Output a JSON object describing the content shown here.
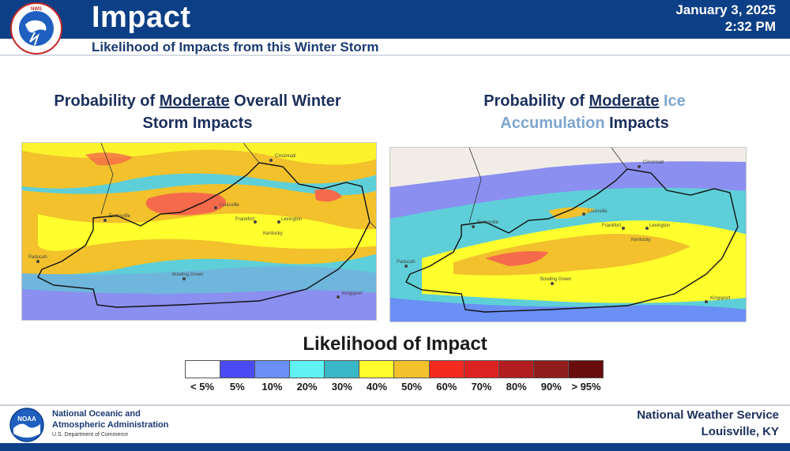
{
  "header": {
    "title": "Impact",
    "subtitle": "Likelihood of Impacts from this Winter Storm",
    "date": "January 3, 2025",
    "time": "2:32 PM",
    "colors": {
      "header_bg": "#0d3f86",
      "subtitle_text": "#1b3a72"
    }
  },
  "logos": {
    "nws": "nws-logo-icon",
    "noaa": "noaa-logo-icon"
  },
  "panels": {
    "left": {
      "title_a": "Probability of ",
      "title_b": "Moderate",
      "title_c": " Overall Winter",
      "title_d": "Storm Impacts",
      "cities": [
        "Cincinnati",
        "Evansville",
        "Louisville",
        "Frankfort",
        "Lexington",
        "Kentucky",
        "Bowling Green",
        "Paducah",
        "Kingsport"
      ]
    },
    "right": {
      "title_a": "Probability of ",
      "title_b": "Moderate",
      "title_c": " Ice",
      "title_d": "Accumulation",
      "title_e": " Impacts",
      "cities": [
        "Cincinnati",
        "Evansville",
        "Louisville",
        "Frankfort",
        "Lexington",
        "Kentucky",
        "Bowling Green",
        "Paducah",
        "Kingsport"
      ]
    }
  },
  "legend": {
    "title": "Likelihood of Impact",
    "items": [
      {
        "label": "< 5%",
        "color": "#ffffff"
      },
      {
        "label": "5%",
        "color": "#4b4bf5"
      },
      {
        "label": "10%",
        "color": "#6a8ff5"
      },
      {
        "label": "20%",
        "color": "#5ef2f4"
      },
      {
        "label": "30%",
        "color": "#3ab7c6"
      },
      {
        "label": "40%",
        "color": "#ffff2e"
      },
      {
        "label": "50%",
        "color": "#f2c12c"
      },
      {
        "label": "60%",
        "color": "#f42a1e"
      },
      {
        "label": "70%",
        "color": "#dd2321"
      },
      {
        "label": "80%",
        "color": "#b21d1f"
      },
      {
        "label": "90%",
        "color": "#8f1d1d"
      },
      {
        "label": "> 95%",
        "color": "#6a0d0d"
      }
    ]
  },
  "footer": {
    "noaa_line1": "National Oceanic and",
    "noaa_line2": "Atmospheric Administration",
    "noaa_dept": "U.S. Department of Commerce",
    "office_line1": "National Weather Service",
    "office_line2": "Louisville, KY"
  }
}
